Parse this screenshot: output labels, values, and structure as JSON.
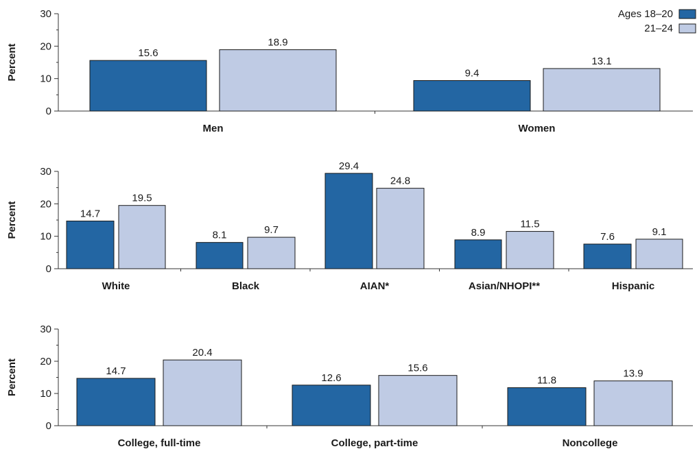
{
  "colors": {
    "series_0": "#2366a3",
    "series_1": "#bfcbe4",
    "axis": "#333333",
    "bar_stroke": "#1a1a1a"
  },
  "legend": {
    "position": "top-right",
    "items": [
      "Ages 18–20",
      "21–24"
    ]
  },
  "chart_data": [
    {
      "type": "bar",
      "ylabel": "Percent",
      "ylim": [
        0,
        30
      ],
      "yticks": [
        "0",
        "10",
        "20",
        "30"
      ],
      "categories": [
        "Men",
        "Women"
      ],
      "series": [
        {
          "name": "Ages 18–20",
          "values": [
            15.6,
            9.4
          ]
        },
        {
          "name": "21–24",
          "values": [
            18.9,
            13.1
          ]
        }
      ]
    },
    {
      "type": "bar",
      "ylabel": "Percent",
      "ylim": [
        0,
        30
      ],
      "yticks": [
        "0",
        "10",
        "20",
        "30"
      ],
      "categories": [
        "White",
        "Black",
        "AIAN*",
        "Asian/NHOPI**",
        "Hispanic"
      ],
      "series": [
        {
          "name": "Ages 18–20",
          "values": [
            14.7,
            8.1,
            29.4,
            8.9,
            7.6
          ]
        },
        {
          "name": "21–24",
          "values": [
            19.5,
            9.7,
            24.8,
            11.5,
            9.1
          ]
        }
      ]
    },
    {
      "type": "bar",
      "ylabel": "Percent",
      "ylim": [
        0,
        30
      ],
      "yticks": [
        "0",
        "10",
        "20",
        "30"
      ],
      "categories": [
        "College, full-time",
        "College, part-time",
        "Noncollege"
      ],
      "series": [
        {
          "name": "Ages 18–20",
          "values": [
            14.7,
            12.6,
            11.8
          ]
        },
        {
          "name": "21–24",
          "values": [
            20.4,
            15.6,
            13.9
          ]
        }
      ]
    }
  ]
}
